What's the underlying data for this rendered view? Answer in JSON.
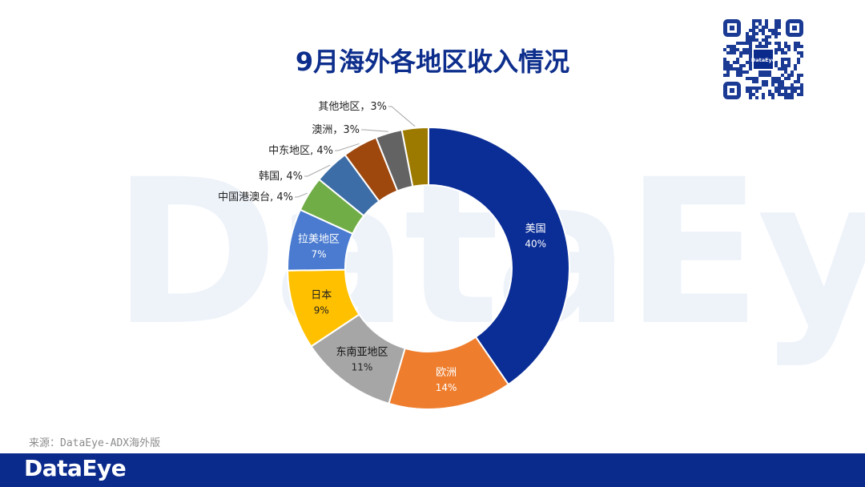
{
  "watermark": "DataEye",
  "title": "9月海外各地区收入情况",
  "qr": {
    "label": "DataEye"
  },
  "source": "来源：DataEye-ADX海外版",
  "footer": {
    "logo": "DataEye"
  },
  "chart_data": {
    "type": "pie",
    "variant": "donut",
    "categories": [
      "美国",
      "欧洲",
      "东南亚地区",
      "日本",
      "拉美地区",
      "中国港澳台",
      "韩国",
      "中东地区",
      "澳洲",
      "其他地区"
    ],
    "values": [
      40,
      14,
      11,
      9,
      7,
      4,
      4,
      4,
      3,
      3
    ],
    "value_suffix": "%",
    "colors": [
      "#0a2d96",
      "#ee7e2e",
      "#a6a6a6",
      "#ffc000",
      "#4a7bd0",
      "#70ad47",
      "#3d6da6",
      "#9e480e",
      "#636363",
      "#9c7a00"
    ],
    "labels": [
      {
        "name": "美国",
        "value": "40%"
      },
      {
        "name": "欧洲",
        "value": "14%"
      },
      {
        "name": "东南亚地区",
        "value": "11%"
      },
      {
        "name": "日本",
        "value": "9%"
      },
      {
        "name": "拉美地区",
        "value": "7%"
      },
      {
        "text": "中国港澳台, 4%"
      },
      {
        "text": "韩国, 4%"
      },
      {
        "text": "中东地区, 4%"
      },
      {
        "text": "澳洲，3%"
      },
      {
        "text": "其他地区，3%"
      }
    ],
    "label_position": "inside for large slices, outside with leader lines for small slices"
  }
}
